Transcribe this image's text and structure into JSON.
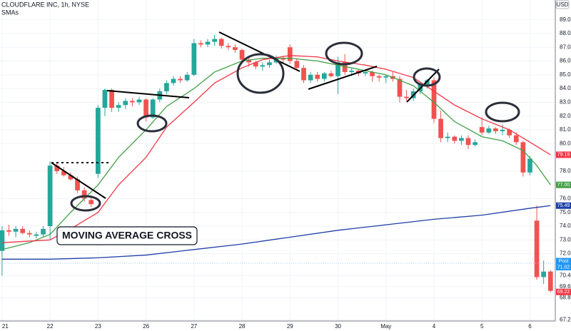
{
  "chart_data": {
    "type": "candlestick",
    "title": "CLOUDFLARE INC, 1h, NYSE",
    "subtitle": "SMAs",
    "currency": "USD",
    "annotation": "MOVING AVERAGE CROSS",
    "up_color": "#26a69a",
    "down_color": "#ef5350",
    "grid": true,
    "xlim": [
      -0.3,
      80.7
    ],
    "ylim": [
      66.9,
      89.5
    ],
    "xticks": [
      {
        "value": 0,
        "label": "21"
      },
      {
        "value": 7,
        "label": "22"
      },
      {
        "value": 14,
        "label": "23"
      },
      {
        "value": 21,
        "label": "26"
      },
      {
        "value": 28,
        "label": "27"
      },
      {
        "value": 35,
        "label": "28"
      },
      {
        "value": 42,
        "label": "29"
      },
      {
        "value": 49,
        "label": "30"
      },
      {
        "value": 56,
        "label": "May"
      },
      {
        "value": 63,
        "label": "4"
      },
      {
        "value": 70,
        "label": "5"
      },
      {
        "value": 77,
        "label": "6"
      }
    ],
    "yticks": [
      {
        "value": 89,
        "label": "89.00"
      },
      {
        "value": 88,
        "label": "88.00"
      },
      {
        "value": 87,
        "label": "87.00"
      },
      {
        "value": 86,
        "label": "86.00"
      },
      {
        "value": 85,
        "label": "85.00"
      },
      {
        "value": 84,
        "label": "84.00"
      },
      {
        "value": 83,
        "label": "83.00"
      },
      {
        "value": 82,
        "label": "82.00"
      },
      {
        "value": 81,
        "label": "81.00"
      },
      {
        "value": 80,
        "label": "80.00"
      },
      {
        "value": 78,
        "label": "78.00"
      },
      {
        "value": 76,
        "label": "76.00"
      },
      {
        "value": 75,
        "label": "75.00"
      },
      {
        "value": 74,
        "label": "74.00"
      },
      {
        "value": 73,
        "label": "73.00"
      },
      {
        "value": 72,
        "label": "72.00"
      },
      {
        "value": 70.4,
        "label": "70.40"
      },
      {
        "value": 69.6,
        "label": "69.60"
      },
      {
        "value": 68.8,
        "label": "68.80"
      },
      {
        "value": 67.2,
        "label": "67.20"
      }
    ],
    "candles": {
      "open": [
        72.2,
        73.7,
        73.6,
        73.8,
        73.5,
        73.3,
        73.4,
        74.0,
        78.4,
        78.0,
        77.7,
        77.4,
        76.6,
        75.9,
        77.8,
        82.6,
        83.9,
        82.6,
        82.8,
        83.1,
        83.0,
        83.2,
        81.9,
        83.2,
        83.8,
        84.4,
        84.7,
        84.6,
        85.0,
        87.3,
        87.2,
        87.4,
        87.6,
        87.1,
        87.0,
        86.8,
        86.1,
        85.9,
        85.6,
        85.7,
        85.9,
        86.2,
        87.0,
        86.0,
        85.5,
        84.6,
        85.0,
        84.7,
        85.1,
        84.9,
        85.9,
        85.2,
        85.3,
        85.1,
        85.2,
        84.9,
        84.8,
        84.9,
        84.7,
        83.4,
        83.3,
        83.8,
        84.3,
        84.6,
        81.8,
        80.4,
        80.5,
        80.2,
        80.4,
        79.9,
        81.2,
        80.8,
        81.1,
        80.9,
        81.0,
        80.6,
        80.1,
        77.9,
        74.4,
        70.3,
        70.7
      ],
      "high": [
        74.0,
        74.1,
        74.0,
        74.0,
        73.7,
        73.6,
        74.0,
        78.7,
        78.6,
        78.3,
        77.9,
        77.6,
        76.8,
        76.1,
        82.8,
        84.0,
        84.0,
        83.0,
        83.3,
        83.3,
        83.4,
        83.3,
        83.3,
        84.0,
        84.6,
        84.9,
        84.9,
        85.2,
        87.6,
        87.5,
        87.6,
        87.9,
        87.7,
        87.3,
        87.2,
        86.9,
        86.3,
        86.0,
        85.9,
        86.1,
        86.4,
        86.4,
        87.2,
        86.2,
        85.7,
        85.2,
        85.2,
        85.2,
        85.3,
        86.3,
        86.5,
        85.5,
        85.4,
        85.4,
        85.3,
        85.0,
        85.0,
        85.2,
        84.9,
        83.9,
        84.0,
        84.5,
        84.7,
        84.8,
        82.4,
        80.8,
        80.6,
        80.6,
        80.6,
        80.3,
        81.9,
        81.3,
        81.2,
        81.4,
        81.1,
        80.8,
        80.2,
        79.1,
        75.5,
        71.5,
        70.8
      ],
      "low": [
        70.4,
        73.3,
        73.2,
        73.4,
        73.2,
        73.1,
        73.2,
        73.0,
        77.8,
        77.6,
        77.3,
        76.4,
        75.8,
        75.4,
        77.5,
        82.0,
        82.3,
        82.3,
        82.5,
        82.7,
        82.8,
        81.6,
        81.8,
        83.0,
        83.6,
        84.2,
        84.4,
        84.5,
        84.9,
        87.0,
        87.0,
        87.1,
        86.9,
        86.8,
        86.6,
        85.9,
        85.6,
        85.4,
        85.3,
        85.5,
        85.8,
        85.9,
        85.8,
        85.3,
        84.4,
        84.4,
        84.5,
        84.5,
        84.8,
        83.6,
        85.0,
        84.9,
        84.9,
        84.9,
        84.5,
        84.5,
        84.4,
        84.5,
        83.0,
        83.1,
        83.1,
        83.6,
        84.0,
        81.5,
        80.1,
        80.1,
        80.0,
        79.9,
        79.6,
        79.8,
        80.6,
        80.7,
        80.7,
        80.6,
        80.4,
        79.9,
        77.6,
        77.7,
        70.1,
        69.8,
        69.2
      ],
      "close": [
        73.7,
        73.6,
        73.8,
        73.5,
        73.4,
        73.4,
        73.8,
        78.4,
        78.0,
        77.7,
        77.4,
        76.6,
        76.0,
        75.6,
        82.6,
        83.9,
        82.6,
        82.8,
        83.1,
        83.0,
        83.2,
        81.9,
        83.2,
        83.8,
        84.4,
        84.7,
        84.6,
        85.0,
        87.3,
        87.2,
        87.4,
        87.6,
        87.1,
        87.0,
        86.8,
        86.1,
        85.9,
        85.6,
        85.7,
        85.9,
        86.2,
        86.1,
        86.0,
        85.5,
        84.6,
        85.0,
        84.7,
        85.1,
        84.9,
        85.9,
        85.2,
        85.3,
        85.1,
        85.2,
        84.9,
        84.8,
        84.9,
        84.7,
        83.4,
        83.3,
        83.8,
        84.3,
        84.6,
        81.8,
        80.4,
        80.5,
        80.2,
        80.4,
        79.9,
        80.1,
        80.8,
        81.1,
        80.9,
        81.0,
        80.6,
        80.1,
        77.9,
        78.9,
        70.3,
        70.7,
        69.3
      ]
    },
    "series": [
      {
        "color": "#43a047",
        "x": [
          0,
          4,
          7,
          10,
          14,
          17,
          21,
          24,
          28,
          31,
          35,
          38,
          42,
          46,
          49,
          53,
          56,
          60,
          63,
          66,
          70,
          73,
          76,
          78,
          80
        ],
        "values": [
          72.3,
          72.8,
          73.4,
          75.0,
          77.0,
          79.0,
          81.0,
          82.7,
          84.0,
          85.2,
          86.0,
          86.2,
          86.2,
          86.0,
          85.7,
          85.3,
          85.0,
          84.2,
          83.0,
          81.6,
          80.5,
          80.2,
          79.5,
          78.4,
          77.0
        ]
      },
      {
        "color": "#f23645",
        "x": [
          0,
          7,
          10,
          14,
          17,
          21,
          24,
          28,
          31,
          35,
          38,
          42,
          46,
          49,
          53,
          56,
          60,
          63,
          66,
          70,
          74,
          77,
          80
        ],
        "values": [
          72.8,
          73.0,
          73.8,
          75.0,
          77.0,
          79.0,
          81.2,
          83.0,
          84.4,
          85.5,
          86.1,
          86.4,
          86.3,
          86.0,
          85.7,
          85.4,
          84.8,
          83.8,
          82.8,
          81.8,
          81.0,
          80.1,
          79.19
        ]
      },
      {
        "color": "#1e3fa8",
        "x": [
          0,
          7,
          14,
          21,
          28,
          35,
          42,
          49,
          56,
          63,
          70,
          77,
          80
        ],
        "values": [
          71.6,
          71.6,
          71.7,
          71.9,
          72.3,
          72.7,
          73.2,
          73.7,
          74.1,
          74.5,
          74.8,
          75.3,
          75.49
        ]
      }
    ],
    "badges": [
      {
        "label": "79.19",
        "value": 79.19,
        "color": "#f23645"
      },
      {
        "label": "77.00",
        "value": 77.0,
        "color": "#43a047"
      },
      {
        "label": "75.49",
        "value": 75.49,
        "color": "#1e3fa8"
      },
      {
        "label": "71.32",
        "value": 71.32,
        "color": "#b2b5be"
      },
      {
        "label": "71.02",
        "value": 71.02,
        "color": "#2196f3",
        "tag": "Post"
      },
      {
        "label": "69.22",
        "value": 69.22,
        "color": "#f23645"
      }
    ]
  }
}
